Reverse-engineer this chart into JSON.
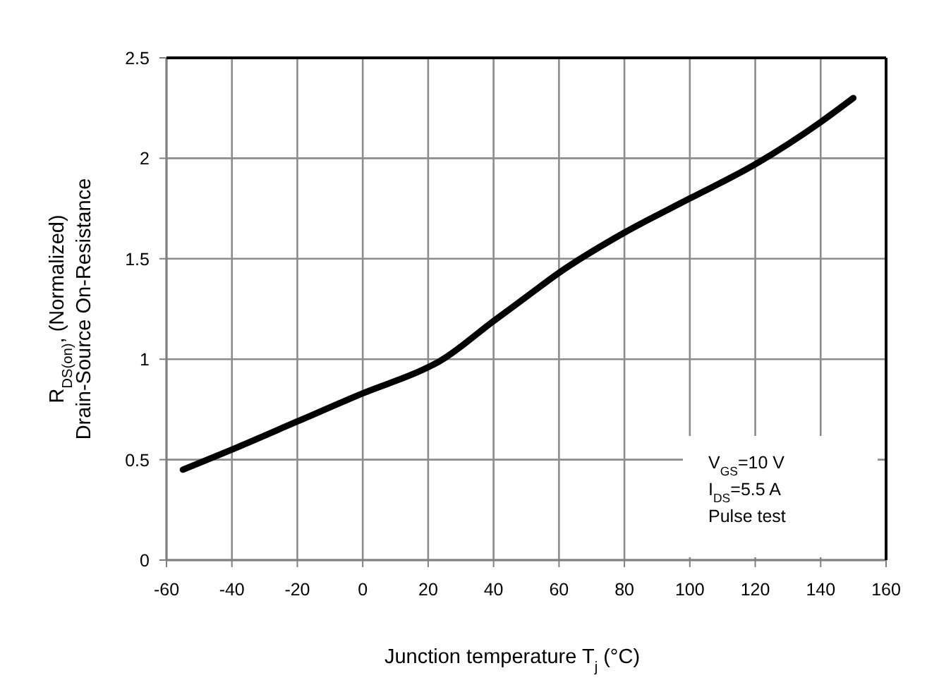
{
  "chart_data": {
    "type": "line",
    "xlabel": "Junction temperature T$_{j}$ (°C)",
    "ylabel": "R$_{DS(on)}$, (Normalized)\nDrain-Source On-Resistance",
    "x": [
      -55,
      -40,
      -20,
      0,
      20,
      23.5,
      40,
      50,
      60,
      80,
      100,
      120,
      140,
      150
    ],
    "series": [
      {
        "color": "#000000",
        "values": [
          0.45,
          0.55,
          0.69,
          0.83,
          0.96,
          0.99,
          1.19,
          1.31,
          1.43,
          1.63,
          1.8,
          1.97,
          2.18,
          2.3
        ]
      }
    ],
    "xlim": [
      -60,
      160
    ],
    "xticks": [
      -60,
      -40,
      -20,
      0,
      20,
      40,
      60,
      80,
      100,
      120,
      140,
      160
    ],
    "ylim": [
      0,
      2.5
    ],
    "yticks": [
      0,
      0.5,
      1,
      1.5,
      2,
      2.5
    ],
    "grid": true,
    "marker": "none",
    "line_style": "solid",
    "annotations": [
      "V$_{GS}$=10 V",
      "I$_{DS}$=5.5 A",
      "Pulse test"
    ]
  }
}
